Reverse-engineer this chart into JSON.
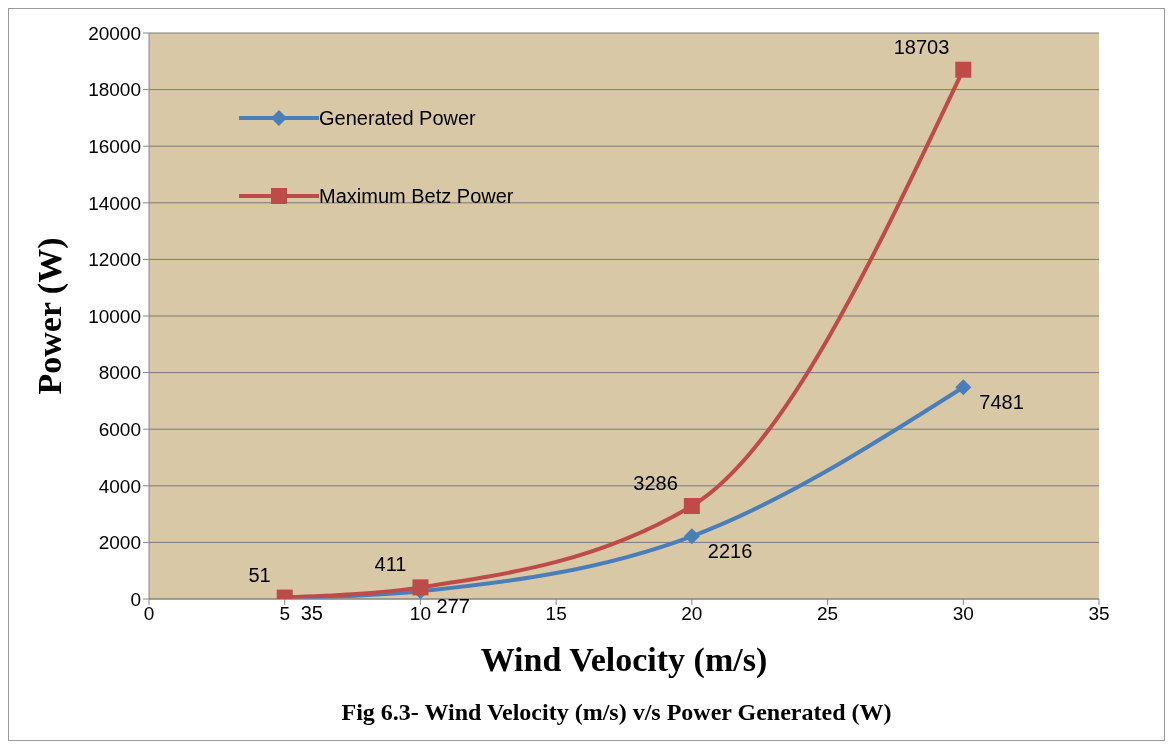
{
  "chart_data": {
    "type": "line",
    "xlabel": "Wind Velocity (m/s)",
    "ylabel": "Power (W)",
    "annotations": [
      "Fig 6.3- Wind Velocity (m/s) v/s Power Generated (W)"
    ],
    "x": [
      5,
      10,
      20,
      30
    ],
    "series": [
      {
        "name": "Generated Power",
        "color": "#4a7ebb",
        "marker": "diamond",
        "values": [
          35,
          277,
          2216,
          7481
        ]
      },
      {
        "name": "Maximum Betz Power",
        "color": "#be4b48",
        "marker": "square",
        "values": [
          51,
          411,
          3286,
          18703
        ]
      }
    ],
    "xlim": [
      0,
      35
    ],
    "xticks": [
      0,
      5,
      10,
      15,
      20,
      25,
      30,
      35
    ],
    "ylim": [
      0,
      20000
    ],
    "yticks": [
      0,
      2000,
      4000,
      6000,
      8000,
      10000,
      12000,
      14000,
      16000,
      18000,
      20000
    ],
    "grid": "y",
    "legend": "top left",
    "data_labels": true,
    "line_style": "solid"
  }
}
